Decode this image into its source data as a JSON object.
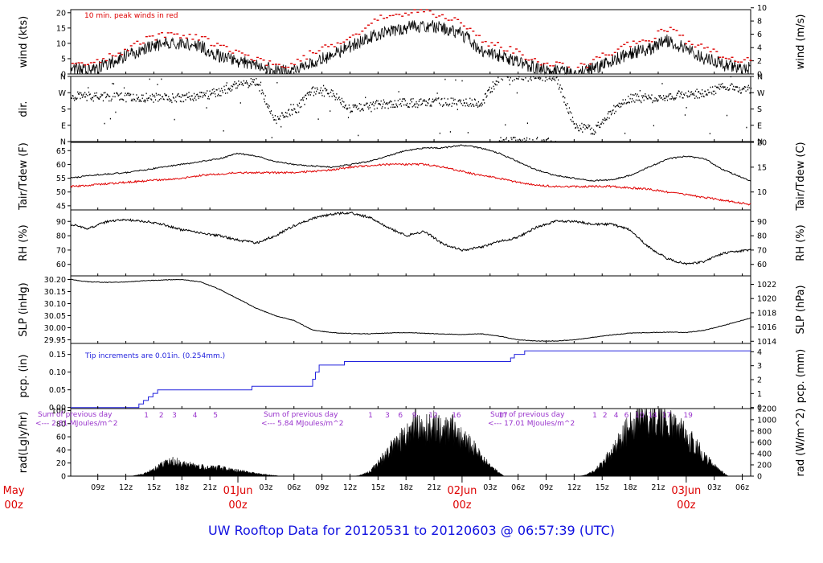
{
  "title": "UW Rooftop Data for 20120531  to  20120603 @ 06:57:39  (UTC)",
  "x_axis": {
    "hour_ticks": [
      "09z",
      "12z",
      "15z",
      "18z",
      "21z",
      "03z",
      "06z",
      "09z",
      "12z",
      "15z",
      "18z",
      "21z",
      "03z",
      "06z",
      "09z",
      "12z",
      "15z",
      "18z",
      "21z",
      "03z",
      "06z"
    ],
    "hour_tick_hours": [
      9,
      12,
      15,
      18,
      21,
      27,
      30,
      33,
      36,
      39,
      42,
      45,
      51,
      54,
      57,
      60,
      63,
      66,
      69,
      75,
      78
    ],
    "x_start_hour": 6.1,
    "x_end_hour": 78.9,
    "day_labels": [
      {
        "date": "May",
        "time": "00z",
        "hour": 0
      },
      {
        "date": "01Jun",
        "time": "00z",
        "hour": 24
      },
      {
        "date": "02Jun",
        "time": "00z",
        "hour": 48
      },
      {
        "date": "03Jun",
        "time": "00z",
        "hour": 72
      }
    ]
  },
  "colors": {
    "axis": "#000000",
    "peak": "#dd0000",
    "dew": "#e00000",
    "precip": "#2222dd",
    "annot": "#9933cc",
    "day": "#dd0000",
    "title": "#1010e0"
  },
  "chart_data": [
    {
      "panel": "wind",
      "type": "line",
      "left_label": "wind (kts)",
      "right_label": "wind (m/s)",
      "left_ticks": [
        "0",
        "5",
        "10",
        "15",
        "20"
      ],
      "right_ticks": [
        "0",
        "2",
        "4",
        "6",
        "8",
        "10"
      ],
      "ylim": [
        0,
        21
      ],
      "annotation": "10 min. peak winds in red",
      "x": [
        6.1,
        8,
        10,
        12,
        14,
        16,
        18,
        20,
        22,
        24,
        26,
        28,
        30,
        32,
        34,
        36,
        38,
        40,
        42,
        44,
        46,
        48,
        50,
        52,
        54,
        56,
        58,
        60,
        62,
        64,
        66,
        68,
        70,
        72,
        74,
        76,
        78.9
      ],
      "values": [
        2,
        1,
        3,
        6,
        8,
        10,
        10,
        9,
        6,
        4,
        3,
        1,
        1,
        4,
        6,
        9,
        12,
        14,
        15,
        16,
        15,
        13,
        8,
        6,
        4,
        2,
        1,
        0,
        2,
        4,
        7,
        8,
        11,
        8,
        5,
        3,
        2
      ],
      "series": [
        {
          "name": "10 min. peak winds",
          "values": [
            4,
            3,
            5,
            8,
            11,
            13,
            13,
            12,
            9,
            7,
            5,
            3,
            3,
            7,
            9,
            12,
            16,
            19,
            20,
            21,
            19,
            17,
            11,
            9,
            7,
            4,
            3,
            2,
            4,
            7,
            10,
            11,
            15,
            11,
            8,
            6,
            4
          ]
        }
      ]
    },
    {
      "panel": "dir",
      "type": "scatter",
      "left_label": "dir.",
      "right_label": "",
      "left_ticks": [
        "N",
        "E",
        "S",
        "W",
        "N"
      ],
      "right_ticks": [
        "N",
        "E",
        "S",
        "W",
        "N"
      ],
      "ylim": [
        0,
        360
      ],
      "x": [
        6.1,
        8,
        10,
        12,
        14,
        16,
        18,
        20,
        22,
        24,
        26,
        28,
        30,
        32,
        34,
        36,
        38,
        40,
        42,
        44,
        46,
        48,
        50,
        52,
        54,
        56,
        58,
        60,
        62,
        64,
        66,
        68,
        70,
        72,
        74,
        76,
        78.9
      ],
      "values": [
        255,
        250,
        250,
        245,
        245,
        240,
        245,
        255,
        270,
        320,
        330,
        120,
        170,
        280,
        270,
        185,
        200,
        210,
        215,
        215,
        220,
        220,
        215,
        360,
        360,
        360,
        355,
        90,
        60,
        170,
        240,
        240,
        250,
        260,
        270,
        300,
        290
      ]
    },
    {
      "panel": "temp",
      "type": "line",
      "left_label": "Tair/Tdew (F)",
      "right_label": "Tair/Tdew (C)",
      "left_ticks": [
        "45",
        "50",
        "55",
        "60",
        "65"
      ],
      "right_ticks": [
        "10",
        "15",
        "20"
      ],
      "ylim": [
        43.5,
        68
      ],
      "x": [
        6.1,
        8,
        10,
        12,
        14,
        16,
        18,
        20,
        22,
        24,
        26,
        28,
        30,
        32,
        34,
        36,
        38,
        40,
        42,
        44,
        46,
        48,
        50,
        52,
        54,
        56,
        58,
        60,
        62,
        64,
        66,
        68,
        70,
        72,
        74,
        76,
        78.9
      ],
      "values": [
        55,
        56,
        56.5,
        57,
        58,
        59,
        60,
        61,
        62,
        64,
        63,
        61,
        60,
        59.5,
        59,
        60,
        61,
        63,
        65,
        66,
        66,
        67,
        66,
        64,
        61,
        58,
        56,
        55,
        54,
        54.5,
        56,
        59,
        62,
        63,
        62,
        58,
        54
      ],
      "series": [
        {
          "name": "Tdew",
          "values": [
            52,
            52.5,
            53,
            53.5,
            54,
            54.5,
            55,
            56,
            56.5,
            57,
            57,
            57,
            57,
            57.5,
            58,
            59,
            59.5,
            60,
            60,
            60,
            59,
            57.5,
            56,
            55,
            53.5,
            52.5,
            52,
            52,
            52,
            52,
            51.5,
            51,
            50,
            49,
            48,
            47,
            45.5
          ]
        }
      ]
    },
    {
      "panel": "rh",
      "type": "line",
      "left_label": "RH (%)",
      "right_label": "RH (%)",
      "left_ticks": [
        "60",
        "70",
        "80",
        "90"
      ],
      "right_ticks": [
        "60",
        "70",
        "80",
        "90"
      ],
      "ylim": [
        52,
        98
      ],
      "x": [
        6.1,
        8,
        10,
        12,
        14,
        16,
        18,
        20,
        22,
        24,
        26,
        28,
        30,
        32,
        34,
        36,
        38,
        40,
        42,
        44,
        46,
        48,
        50,
        52,
        54,
        56,
        58,
        60,
        62,
        64,
        66,
        68,
        70,
        72,
        74,
        76,
        78.9
      ],
      "values": [
        88,
        85,
        90,
        91,
        90,
        88,
        84,
        82,
        80,
        77,
        75,
        80,
        87,
        92,
        95,
        96,
        93,
        86,
        80,
        83,
        74,
        70,
        72,
        76,
        79,
        86,
        90,
        90,
        88,
        88,
        84,
        72,
        64,
        60,
        62,
        68,
        70
      ]
    },
    {
      "panel": "slp",
      "type": "line",
      "left_label": "SLP (inHg)",
      "right_label": "SLP (hPa)",
      "left_ticks": [
        "29.95",
        "30.00",
        "30.05",
        "30.10",
        "30.15",
        "30.20"
      ],
      "right_ticks": [
        "1014",
        "1016",
        "1018",
        "1020",
        "1022"
      ],
      "ylim": [
        29.935,
        30.215
      ],
      "x": [
        6.1,
        8,
        10,
        12,
        14,
        16,
        18,
        20,
        22,
        24,
        26,
        28,
        30,
        32,
        34,
        36,
        38,
        40,
        42,
        44,
        46,
        48,
        50,
        52,
        54,
        56,
        58,
        60,
        62,
        64,
        66,
        68,
        70,
        72,
        74,
        76,
        78.9
      ],
      "values": [
        30.2,
        30.19,
        30.188,
        30.19,
        30.195,
        30.198,
        30.2,
        30.19,
        30.16,
        30.12,
        30.08,
        30.05,
        30.03,
        29.99,
        29.98,
        29.976,
        29.975,
        29.978,
        29.98,
        29.977,
        29.974,
        29.972,
        29.975,
        29.965,
        29.95,
        29.945,
        29.945,
        29.95,
        29.96,
        29.97,
        29.978,
        29.98,
        29.982,
        29.98,
        29.99,
        30.01,
        30.04
      ]
    },
    {
      "panel": "pcp",
      "type": "line",
      "left_label": "pcp. (in)",
      "right_label": "pcp. (mm)",
      "left_ticks": [
        "0.00",
        "0.05",
        "0.10",
        "0.15"
      ],
      "right_ticks": [
        "0",
        "1",
        "2",
        "3",
        "4"
      ],
      "ylim": [
        -0.003,
        0.181
      ],
      "annotation": "Tip increments are 0.01in. (0.254mm.)",
      "x": [
        6.1,
        12.9,
        13.4,
        13.9,
        14.4,
        14.9,
        15.4,
        20.7,
        25.5,
        31.7,
        32.0,
        32.3,
        32.7,
        35.4,
        53.2,
        53.6,
        54.7,
        78.9
      ],
      "values": [
        0,
        0,
        0.01,
        0.02,
        0.03,
        0.04,
        0.05,
        0.05,
        0.06,
        0.06,
        0.08,
        0.1,
        0.12,
        0.13,
        0.14,
        0.15,
        0.16,
        0.16
      ]
    },
    {
      "panel": "rad",
      "type": "area",
      "left_label": "rad(Lgly/hr)",
      "right_label": "rad (W/m^2)",
      "left_ticks": [
        "0",
        "20",
        "40",
        "60",
        "80",
        "100"
      ],
      "right_ticks": [
        "0",
        "200",
        "400",
        "600",
        "800",
        "1000",
        "1200"
      ],
      "ylim": [
        0,
        103
      ],
      "x": [
        6.1,
        12.5,
        13,
        14,
        15,
        16,
        17,
        18,
        19,
        20,
        21,
        22,
        23,
        24,
        25,
        26,
        27,
        28,
        28.5,
        36.5,
        37,
        38,
        39,
        40,
        41,
        42,
        43,
        44,
        45,
        46,
        47,
        48,
        49,
        50,
        51,
        52,
        52.5,
        60.5,
        61,
        62,
        63,
        64,
        65,
        66,
        67,
        68,
        69,
        70,
        71,
        72,
        73,
        74,
        75,
        76,
        76.5,
        78.9
      ],
      "values": [
        0,
        0,
        1,
        4,
        10,
        18,
        22,
        20,
        16,
        14,
        12,
        13,
        10,
        8,
        6,
        4,
        2,
        1,
        0,
        0,
        1,
        6,
        18,
        35,
        50,
        60,
        80,
        70,
        75,
        65,
        72,
        55,
        45,
        30,
        15,
        5,
        0,
        0,
        1,
        6,
        18,
        35,
        55,
        75,
        90,
        80,
        88,
        80,
        70,
        60,
        45,
        30,
        15,
        5,
        0,
        0
      ],
      "annotations": [
        {
          "text": "Sum of previous day",
          "sub": "<--- 2.81 MJoules/m^2"
        },
        {
          "text": "Sum of previous day",
          "sub": "<--- 5.84 MJoules/m^2"
        },
        {
          "text": "Sum of previous day",
          "sub": "<--- 17.01 MJoules/m^2"
        }
      ],
      "hour_markers": [
        {
          "hour": 14.2,
          "label": "1"
        },
        {
          "hour": 15.8,
          "label": "2"
        },
        {
          "hour": 17.2,
          "label": "3"
        },
        {
          "hour": 19.4,
          "label": "4"
        },
        {
          "hour": 21.6,
          "label": "5"
        },
        {
          "hour": 38.2,
          "label": "1"
        },
        {
          "hour": 40.0,
          "label": "3"
        },
        {
          "hour": 41.4,
          "label": "6"
        },
        {
          "hour": 42.9,
          "label": "9"
        },
        {
          "hour": 44.9,
          "label": "12"
        },
        {
          "hour": 47.4,
          "label": "16"
        },
        {
          "hour": 52.4,
          "label": "17"
        },
        {
          "hour": 62.2,
          "label": "1"
        },
        {
          "hour": 63.3,
          "label": "2"
        },
        {
          "hour": 64.5,
          "label": "4"
        },
        {
          "hour": 65.6,
          "label": "6"
        },
        {
          "hour": 67.0,
          "label": "10"
        },
        {
          "hour": 68.4,
          "label": "14"
        },
        {
          "hour": 69.9,
          "label": "17"
        },
        {
          "hour": 72.2,
          "label": "19"
        }
      ]
    }
  ]
}
